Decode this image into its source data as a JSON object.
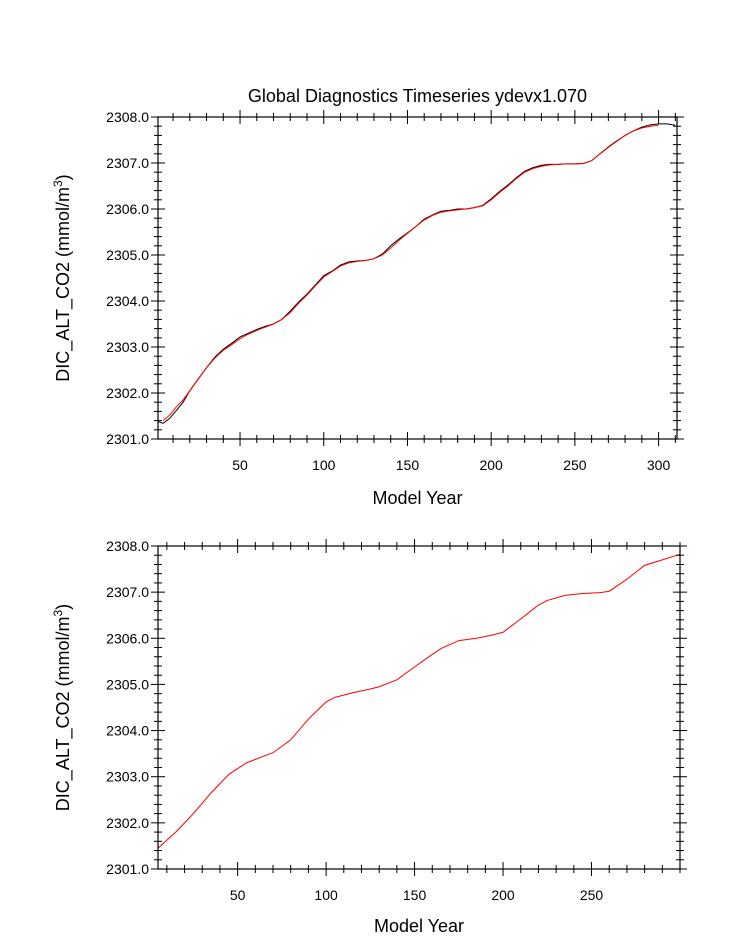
{
  "chart_data": [
    {
      "type": "line",
      "title": "Global Diagnostics Timeseries ydevx1.070",
      "xlabel": "Model Year",
      "ylabel": "DIC_ALT_CO2 (mmol/m",
      "ylabel_sup": "3",
      "ylabel_close": ")",
      "xlim": [
        1,
        311
      ],
      "ylim": [
        2301.0,
        2308.0
      ],
      "xticks": [
        50,
        100,
        150,
        200,
        250,
        300
      ],
      "xtick_labels": [
        "50",
        "100",
        "150",
        "200",
        "250",
        "300"
      ],
      "yticks": [
        2301,
        2302,
        2303,
        2304,
        2305,
        2306,
        2307,
        2308
      ],
      "ytick_labels": [
        "2301.0",
        "2302.0",
        "2303.0",
        "2304.0",
        "2305.0",
        "2306.0",
        "2307.0",
        "2308.0"
      ],
      "grid": false,
      "series": [
        {
          "color": "#000000",
          "x": [
            1,
            4,
            8,
            12,
            16,
            20,
            25,
            30,
            35,
            40,
            45,
            50,
            55,
            60,
            65,
            70,
            75,
            80,
            85,
            90,
            95,
            100,
            105,
            110,
            115,
            120,
            125,
            130,
            135,
            140,
            145,
            150,
            155,
            160,
            165,
            170,
            175,
            180,
            185,
            190,
            195,
            200,
            205,
            210,
            215,
            220,
            225,
            230,
            235,
            240,
            245,
            250,
            255,
            260,
            265,
            270,
            275,
            280,
            285,
            290,
            295,
            300,
            305,
            310
          ],
          "y": [
            2301.38,
            2301.34,
            2301.45,
            2301.62,
            2301.8,
            2302.05,
            2302.3,
            2302.55,
            2302.78,
            2302.95,
            2303.08,
            2303.22,
            2303.3,
            2303.38,
            2303.45,
            2303.5,
            2303.6,
            2303.78,
            2303.98,
            2304.15,
            2304.35,
            2304.55,
            2304.65,
            2304.78,
            2304.85,
            2304.87,
            2304.88,
            2304.92,
            2305.02,
            2305.2,
            2305.35,
            2305.48,
            2305.62,
            2305.78,
            2305.87,
            2305.95,
            2305.97,
            2306.0,
            2306.0,
            2306.03,
            2306.08,
            2306.22,
            2306.38,
            2306.52,
            2306.68,
            2306.82,
            2306.9,
            2306.95,
            2306.97,
            2306.97,
            2306.98,
            2306.98,
            2306.99,
            2307.05,
            2307.2,
            2307.35,
            2307.48,
            2307.6,
            2307.7,
            2307.78,
            2307.83,
            2307.85,
            2307.85,
            2307.82
          ]
        },
        {
          "color": "#ff0000",
          "x": [
            4,
            8,
            12,
            16,
            20,
            25,
            30,
            35,
            40,
            45,
            50,
            55,
            60,
            65,
            70,
            75,
            80,
            85,
            90,
            95,
            100,
            105,
            110,
            115,
            120,
            125,
            130,
            135,
            140,
            145,
            150,
            155,
            160,
            165,
            170,
            175,
            180,
            185,
            190,
            195,
            200,
            205,
            210,
            215,
            220,
            225,
            230,
            235,
            240,
            245,
            250,
            255,
            260,
            265,
            270,
            275,
            280,
            285,
            290,
            295,
            300
          ],
          "y": [
            2301.4,
            2301.52,
            2301.7,
            2301.85,
            2302.05,
            2302.3,
            2302.55,
            2302.76,
            2302.93,
            2303.05,
            2303.18,
            2303.28,
            2303.36,
            2303.43,
            2303.5,
            2303.6,
            2303.75,
            2303.95,
            2304.13,
            2304.33,
            2304.52,
            2304.64,
            2304.76,
            2304.83,
            2304.86,
            2304.88,
            2304.92,
            2305.0,
            2305.15,
            2305.32,
            2305.47,
            2305.62,
            2305.76,
            2305.86,
            2305.93,
            2305.96,
            2305.98,
            2306.0,
            2306.03,
            2306.07,
            2306.2,
            2306.36,
            2306.5,
            2306.66,
            2306.8,
            2306.88,
            2306.93,
            2306.96,
            2306.97,
            2306.98,
            2306.98,
            2306.99,
            2307.05,
            2307.2,
            2307.34,
            2307.47,
            2307.6,
            2307.7,
            2307.76,
            2307.8,
            2307.82
          ]
        }
      ]
    },
    {
      "type": "line",
      "xlabel": "Model Year",
      "ylabel": "DIC_ALT_CO2 (mmol/m",
      "ylabel_sup": "3",
      "ylabel_close": ")",
      "xlim": [
        5,
        300
      ],
      "ylim": [
        2301.0,
        2308.0
      ],
      "xticks": [
        50,
        100,
        150,
        200,
        250
      ],
      "xtick_labels": [
        "50",
        "100",
        "150",
        "200",
        "250"
      ],
      "yticks": [
        2301,
        2302,
        2303,
        2304,
        2305,
        2306,
        2307,
        2308
      ],
      "ytick_labels": [
        "2301.0",
        "2302.0",
        "2303.0",
        "2304.0",
        "2305.0",
        "2306.0",
        "2307.0",
        "2308.0"
      ],
      "grid": false,
      "series": [
        {
          "color": "#ff0000",
          "x": [
            5,
            15,
            25,
            35,
            45,
            55,
            65,
            70,
            80,
            90,
            100,
            105,
            115,
            125,
            130,
            140,
            150,
            160,
            165,
            175,
            185,
            195,
            200,
            210,
            220,
            225,
            235,
            245,
            255,
            260,
            270,
            280,
            290,
            300
          ],
          "y": [
            2301.45,
            2301.8,
            2302.2,
            2302.65,
            2303.05,
            2303.3,
            2303.45,
            2303.52,
            2303.8,
            2304.25,
            2304.62,
            2304.72,
            2304.82,
            2304.9,
            2304.95,
            2305.1,
            2305.38,
            2305.65,
            2305.78,
            2305.95,
            2306.0,
            2306.08,
            2306.13,
            2306.42,
            2306.72,
            2306.82,
            2306.93,
            2306.97,
            2306.99,
            2307.02,
            2307.28,
            2307.58,
            2307.7,
            2307.82
          ]
        }
      ]
    }
  ]
}
